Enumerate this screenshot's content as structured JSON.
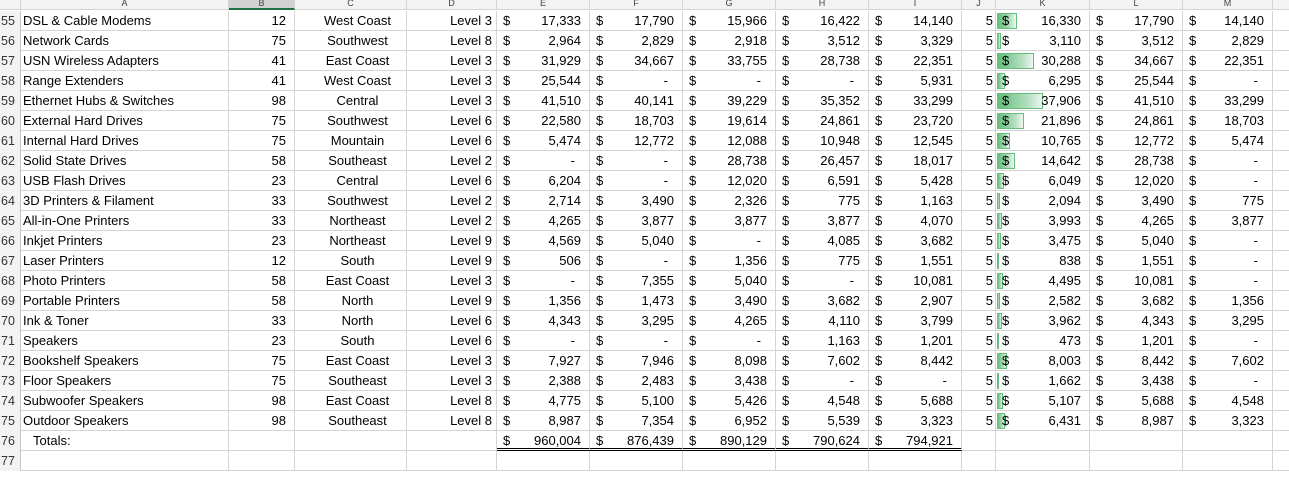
{
  "column_headers": [
    "A",
    "B",
    "C",
    "D",
    "E",
    "F",
    "G",
    "H",
    "I",
    "J",
    "K",
    "L",
    "M"
  ],
  "selected_column": "B",
  "rows": [
    {
      "n": "55",
      "product": "DSL & Cable Modems",
      "qty": "12",
      "region": "West Coast",
      "level": "Level 3",
      "e": "17,333",
      "f": "17,790",
      "g": "15,966",
      "h": "16,422",
      "i": "14,140",
      "j": "5",
      "k": "16,330",
      "kbar": 0.43,
      "l": "17,790",
      "m": "14,140"
    },
    {
      "n": "56",
      "product": "Network Cards",
      "qty": "75",
      "region": "Southwest",
      "level": "Level 8",
      "e": "2,964",
      "f": "2,829",
      "g": "2,918",
      "h": "3,512",
      "i": "3,329",
      "j": "5",
      "k": "3,110",
      "kbar": 0.08,
      "l": "3,512",
      "m": "2,829"
    },
    {
      "n": "57",
      "product": "USN Wireless Adapters",
      "qty": "41",
      "region": "East Coast",
      "level": "Level 3",
      "e": "31,929",
      "f": "34,667",
      "g": "33,755",
      "h": "28,738",
      "i": "22,351",
      "j": "5",
      "k": "30,288",
      "kbar": 0.8,
      "l": "34,667",
      "m": "22,351"
    },
    {
      "n": "58",
      "product": "Range Extenders",
      "qty": "41",
      "region": "West Coast",
      "level": "Level 3",
      "e": "25,544",
      "f": "-",
      "g": "-",
      "h": "-",
      "i": "5,931",
      "j": "5",
      "k": "6,295",
      "kbar": 0.17,
      "l": "25,544",
      "m": "-"
    },
    {
      "n": "59",
      "product": "Ethernet Hubs & Switches",
      "qty": "98",
      "region": "Central",
      "level": "Level 3",
      "e": "41,510",
      "f": "40,141",
      "g": "39,229",
      "h": "35,352",
      "i": "33,299",
      "j": "5",
      "k": "37,906",
      "kbar": 1.0,
      "l": "41,510",
      "m": "33,299"
    },
    {
      "n": "60",
      "product": "External Hard Drives",
      "qty": "75",
      "region": "Southwest",
      "level": "Level 6",
      "e": "22,580",
      "f": "18,703",
      "g": "19,614",
      "h": "24,861",
      "i": "23,720",
      "j": "5",
      "k": "21,896",
      "kbar": 0.58,
      "l": "24,861",
      "m": "18,703"
    },
    {
      "n": "61",
      "product": "Internal Hard Drives",
      "qty": "75",
      "region": "Mountain",
      "level": "Level 6",
      "e": "5,474",
      "f": "12,772",
      "g": "12,088",
      "h": "10,948",
      "i": "12,545",
      "j": "5",
      "k": "10,765",
      "kbar": 0.28,
      "l": "12,772",
      "m": "5,474"
    },
    {
      "n": "62",
      "product": "Solid State Drives",
      "qty": "58",
      "region": "Southeast",
      "level": "Level 2",
      "e": "-",
      "f": "-",
      "g": "28,738",
      "h": "26,457",
      "i": "18,017",
      "j": "5",
      "k": "14,642",
      "kbar": 0.39,
      "l": "28,738",
      "m": "-"
    },
    {
      "n": "63",
      "product": "USB Flash Drives",
      "qty": "23",
      "region": "Central",
      "level": "Level 6",
      "e": "6,204",
      "f": "-",
      "g": "12,020",
      "h": "6,591",
      "i": "5,428",
      "j": "5",
      "k": "6,049",
      "kbar": 0.16,
      "l": "12,020",
      "m": "-"
    },
    {
      "n": "64",
      "product": "3D Printers & Filament",
      "qty": "33",
      "region": "Southwest",
      "level": "Level 2",
      "e": "2,714",
      "f": "3,490",
      "g": "2,326",
      "h": "775",
      "i": "1,163",
      "j": "5",
      "k": "2,094",
      "kbar": 0.06,
      "l": "3,490",
      "m": "775"
    },
    {
      "n": "65",
      "product": "All-in-One Printers",
      "qty": "33",
      "region": "Northeast",
      "level": "Level 2",
      "e": "4,265",
      "f": "3,877",
      "g": "3,877",
      "h": "3,877",
      "i": "4,070",
      "j": "5",
      "k": "3,993",
      "kbar": 0.1,
      "l": "4,265",
      "m": "3,877"
    },
    {
      "n": "66",
      "product": "Inkjet Printers",
      "qty": "23",
      "region": "Northeast",
      "level": "Level 9",
      "e": "4,569",
      "f": "5,040",
      "g": "-",
      "h": "4,085",
      "i": "3,682",
      "j": "5",
      "k": "3,475",
      "kbar": 0.09,
      "l": "5,040",
      "m": "-"
    },
    {
      "n": "67",
      "product": "Laser Printers",
      "qty": "12",
      "region": "South",
      "level": "Level 9",
      "e": "506",
      "f": "-",
      "g": "1,356",
      "h": "775",
      "i": "1,551",
      "j": "5",
      "k": "838",
      "kbar": 0.02,
      "l": "1,551",
      "m": "-"
    },
    {
      "n": "68",
      "product": "Photo Printers",
      "qty": "58",
      "region": "East Coast",
      "level": "Level 3",
      "e": "-",
      "f": "7,355",
      "g": "5,040",
      "h": "-",
      "i": "10,081",
      "j": "5",
      "k": "4,495",
      "kbar": 0.12,
      "l": "10,081",
      "m": "-"
    },
    {
      "n": "69",
      "product": "Portable Printers",
      "qty": "58",
      "region": "North",
      "level": "Level 9",
      "e": "1,356",
      "f": "1,473",
      "g": "3,490",
      "h": "3,682",
      "i": "2,907",
      "j": "5",
      "k": "2,582",
      "kbar": 0.07,
      "l": "3,682",
      "m": "1,356"
    },
    {
      "n": "70",
      "product": "Ink & Toner",
      "qty": "33",
      "region": "North",
      "level": "Level 6",
      "e": "4,343",
      "f": "3,295",
      "g": "4,265",
      "h": "4,110",
      "i": "3,799",
      "j": "5",
      "k": "3,962",
      "kbar": 0.1,
      "l": "4,343",
      "m": "3,295"
    },
    {
      "n": "71",
      "product": "Speakers",
      "qty": "23",
      "region": "South",
      "level": "Level 6",
      "e": "-",
      "f": "-",
      "g": "-",
      "h": "1,163",
      "i": "1,201",
      "j": "5",
      "k": "473",
      "kbar": 0.01,
      "l": "1,201",
      "m": "-"
    },
    {
      "n": "72",
      "product": "Bookshelf Speakers",
      "qty": "75",
      "region": "East Coast",
      "level": "Level 3",
      "e": "7,927",
      "f": "7,946",
      "g": "8,098",
      "h": "7,602",
      "i": "8,442",
      "j": "5",
      "k": "8,003",
      "kbar": 0.21,
      "l": "8,442",
      "m": "7,602"
    },
    {
      "n": "73",
      "product": "Floor Speakers",
      "qty": "75",
      "region": "Southeast",
      "level": "Level 3",
      "e": "2,388",
      "f": "2,483",
      "g": "3,438",
      "h": "-",
      "i": "-",
      "j": "5",
      "k": "1,662",
      "kbar": 0.04,
      "l": "3,438",
      "m": "-"
    },
    {
      "n": "74",
      "product": "Subwoofer Speakers",
      "qty": "98",
      "region": "East Coast",
      "level": "Level 8",
      "e": "4,775",
      "f": "5,100",
      "g": "5,426",
      "h": "4,548",
      "i": "5,688",
      "j": "5",
      "k": "5,107",
      "kbar": 0.13,
      "l": "5,688",
      "m": "4,548"
    },
    {
      "n": "75",
      "product": "Outdoor Speakers",
      "qty": "98",
      "region": "Southeast",
      "level": "Level 8",
      "e": "8,987",
      "f": "7,354",
      "g": "6,952",
      "h": "5,539",
      "i": "3,323",
      "j": "5",
      "k": "6,431",
      "kbar": 0.17,
      "l": "8,987",
      "m": "3,323"
    }
  ],
  "totals": {
    "n": "76",
    "label": "Totals:",
    "e": "960,004",
    "f": "876,439",
    "g": "890,129",
    "h": "790,624",
    "i": "794,921"
  },
  "empty_row": {
    "n": "77"
  },
  "currency_symbol": "$",
  "databar_color": "#63be7b"
}
